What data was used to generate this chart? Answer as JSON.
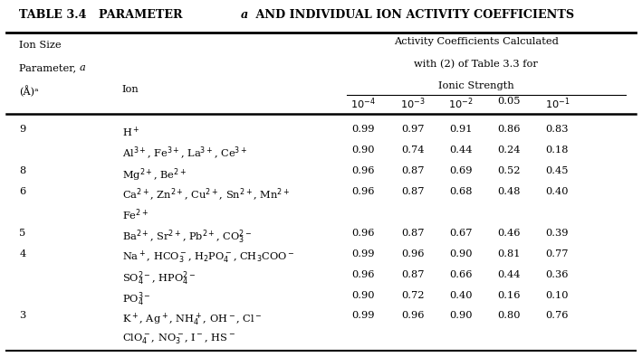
{
  "rows": [
    {
      "a": "9",
      "ion": "H$^+$",
      "vals": [
        "0.99",
        "0.97",
        "0.91",
        "0.86",
        "0.83"
      ]
    },
    {
      "a": "",
      "ion": "Al$^{3+}$, Fe$^{3+}$, La$^{3+}$, Ce$^{3+}$",
      "vals": [
        "0.90",
        "0.74",
        "0.44",
        "0.24",
        "0.18"
      ]
    },
    {
      "a": "8",
      "ion": "Mg$^{2+}$, Be$^{2+}$",
      "vals": [
        "0.96",
        "0.87",
        "0.69",
        "0.52",
        "0.45"
      ]
    },
    {
      "a": "6",
      "ion": "Ca$^{2+}$, Zn$^{2+}$, Cu$^{2+}$, Sn$^{2+}$, Mn$^{2+}$",
      "vals": [
        "0.96",
        "0.87",
        "0.68",
        "0.48",
        "0.40"
      ]
    },
    {
      "a": "",
      "ion": "Fe$^{2+}$",
      "vals": [
        "",
        "",
        "",
        "",
        ""
      ]
    },
    {
      "a": "5",
      "ion": "Ba$^{2+}$, Sr$^{2+}$, Pb$^{2+}$, CO$_3^{2-}$",
      "vals": [
        "0.96",
        "0.87",
        "0.67",
        "0.46",
        "0.39"
      ]
    },
    {
      "a": "4",
      "ion": "Na$^+$, HCO$_3^-$, H$_2$PO$_4^-$, CH$_3$COO$^-$",
      "vals": [
        "0.99",
        "0.96",
        "0.90",
        "0.81",
        "0.77"
      ]
    },
    {
      "a": "",
      "ion": "SO$_4^{2-}$, HPO$_4^{2-}$",
      "vals": [
        "0.96",
        "0.87",
        "0.66",
        "0.44",
        "0.36"
      ]
    },
    {
      "a": "",
      "ion": "PO$_4^{3-}$",
      "vals": [
        "0.90",
        "0.72",
        "0.40",
        "0.16",
        "0.10"
      ]
    },
    {
      "a": "3",
      "ion": "K$^+$, Ag$^+$, NH$_4^+$, OH$^-$, Cl$^-$",
      "vals": [
        "0.99",
        "0.96",
        "0.90",
        "0.80",
        "0.76"
      ]
    },
    {
      "a": "",
      "ion": "ClO$_4^-$, NO$_3^-$, I$^-$, HS$^-$",
      "vals": [
        "",
        "",
        "",
        "",
        ""
      ]
    }
  ],
  "col_headers": [
    "$10^{-4}$",
    "$10^{-3}$",
    "$10^{-2}$",
    "0.05",
    "$10^{-1}$"
  ],
  "bg_color": "#ffffff",
  "text_color": "#000000",
  "font_size": 8.2,
  "title_font_size": 9.2
}
